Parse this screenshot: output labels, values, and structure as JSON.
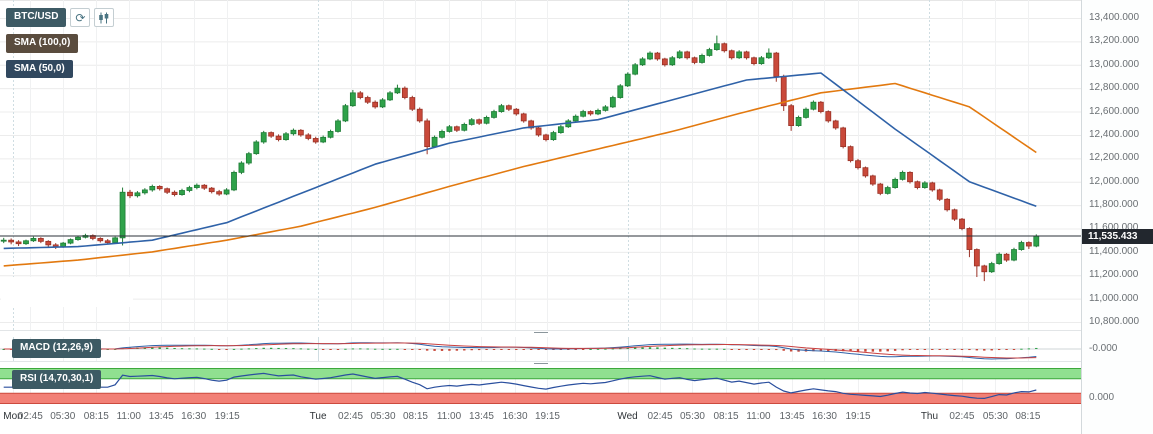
{
  "symbol": {
    "label": "BTC/USD"
  },
  "icons": {
    "refresh": "⟳",
    "chart_style": "candlestick"
  },
  "current_price": {
    "label": "11,535.433",
    "value": 11535.433
  },
  "indicators": {
    "sma100": {
      "label": "SMA (100,0)",
      "color": "#e2790f",
      "badge_bg": "#5a4c3e"
    },
    "sma50": {
      "label": "SMA (50,0)",
      "color": "#2f62a8",
      "badge_bg": "#31485f"
    },
    "macd": {
      "label": "MACD (12,26,9)",
      "params": [
        12,
        26,
        9
      ],
      "axis_label": "-0.000",
      "colors": {
        "hist_up": "#2fa24a",
        "hist_down": "#c9493a",
        "macd_line": "#2f62a8",
        "signal_line": "#c94040",
        "zero_line": "#cfd4d7"
      }
    },
    "rsi": {
      "label": "RSI (14,70,30,1)",
      "params": [
        14,
        70,
        30,
        1
      ],
      "axis_label": "0.000",
      "colors": {
        "line": "#2a4f9e",
        "band_high_fill": "#90e090",
        "band_high_edge": "#3ca83c",
        "band_low_fill": "#f28076",
        "band_low_edge": "#cc4a3e"
      }
    }
  },
  "chart_data": {
    "type": "candlestick",
    "title": "BTC/USD",
    "grid": true,
    "ylim": [
      10732,
      13554
    ],
    "price_axis": {
      "labels": [
        "13,400.000",
        "13,200.000",
        "13,000.000",
        "12,800.000",
        "12,600.000",
        "12,400.000",
        "12,200.000",
        "12,000.000",
        "11,800.000",
        "11,600.000",
        "11,400.000",
        "11,200.000",
        "11,000.000",
        "10,800.000"
      ],
      "values": [
        13400,
        13200,
        13000,
        12800,
        12600,
        12400,
        12200,
        12000,
        11800,
        11600,
        11400,
        11200,
        11000,
        10800
      ]
    },
    "timeframe_labels": [
      {
        "label": "Mon",
        "x": 0.012,
        "day": true
      },
      {
        "label": "02:45",
        "x": 0.028,
        "day": false
      },
      {
        "label": "05:30",
        "x": 0.058,
        "day": false
      },
      {
        "label": "08:15",
        "x": 0.089,
        "day": false
      },
      {
        "label": "11:00",
        "x": 0.119,
        "day": false
      },
      {
        "label": "13:45",
        "x": 0.149,
        "day": false
      },
      {
        "label": "16:30",
        "x": 0.179,
        "day": false
      },
      {
        "label": "19:15",
        "x": 0.21,
        "day": false
      },
      {
        "label": "Tue",
        "x": 0.294,
        "day": true
      },
      {
        "label": "02:45",
        "x": 0.324,
        "day": false
      },
      {
        "label": "05:30",
        "x": 0.354,
        "day": false
      },
      {
        "label": "08:15",
        "x": 0.384,
        "day": false
      },
      {
        "label": "11:00",
        "x": 0.415,
        "day": false
      },
      {
        "label": "13:45",
        "x": 0.445,
        "day": false
      },
      {
        "label": "16:30",
        "x": 0.476,
        "day": false
      },
      {
        "label": "19:15",
        "x": 0.506,
        "day": false
      },
      {
        "label": "Wed",
        "x": 0.58,
        "day": true
      },
      {
        "label": "02:45",
        "x": 0.61,
        "day": false
      },
      {
        "label": "05:30",
        "x": 0.64,
        "day": false
      },
      {
        "label": "08:15",
        "x": 0.671,
        "day": false
      },
      {
        "label": "11:00",
        "x": 0.701,
        "day": false
      },
      {
        "label": "13:45",
        "x": 0.732,
        "day": false
      },
      {
        "label": "16:30",
        "x": 0.762,
        "day": false
      },
      {
        "label": "19:15",
        "x": 0.793,
        "day": false
      },
      {
        "label": "Thu",
        "x": 0.859,
        "day": true
      },
      {
        "label": "02:45",
        "x": 0.889,
        "day": false
      },
      {
        "label": "05:30",
        "x": 0.92,
        "day": false
      },
      {
        "label": "08:15",
        "x": 0.95,
        "day": false
      }
    ],
    "candles": [
      [
        11495,
        11520,
        11475,
        11500
      ],
      [
        11500,
        11515,
        11465,
        11485
      ],
      [
        11485,
        11500,
        11450,
        11470
      ],
      [
        11470,
        11505,
        11460,
        11495
      ],
      [
        11495,
        11530,
        11485,
        11515
      ],
      [
        11515,
        11525,
        11475,
        11490
      ],
      [
        11490,
        11500,
        11445,
        11460
      ],
      [
        11460,
        11475,
        11425,
        11445
      ],
      [
        11445,
        11485,
        11435,
        11475
      ],
      [
        11475,
        11515,
        11465,
        11505
      ],
      [
        11505,
        11540,
        11495,
        11525
      ],
      [
        11525,
        11555,
        11515,
        11540
      ],
      [
        11540,
        11550,
        11500,
        11515
      ],
      [
        11515,
        11525,
        11480,
        11495
      ],
      [
        11495,
        11510,
        11465,
        11480
      ],
      [
        11480,
        11530,
        11470,
        11520
      ],
      [
        11520,
        11950,
        11455,
        11910
      ],
      [
        11910,
        11930,
        11860,
        11880
      ],
      [
        11880,
        11920,
        11865,
        11905
      ],
      [
        11905,
        11945,
        11890,
        11930
      ],
      [
        11930,
        11975,
        11915,
        11960
      ],
      [
        11960,
        11970,
        11925,
        11940
      ],
      [
        11940,
        11950,
        11895,
        11910
      ],
      [
        11910,
        11925,
        11875,
        11890
      ],
      [
        11890,
        11940,
        11880,
        11925
      ],
      [
        11925,
        11965,
        11910,
        11950
      ],
      [
        11950,
        11985,
        11935,
        11970
      ],
      [
        11970,
        11980,
        11930,
        11945
      ],
      [
        11945,
        11955,
        11900,
        11915
      ],
      [
        11915,
        11930,
        11880,
        11895
      ],
      [
        11895,
        11945,
        11885,
        11930
      ],
      [
        11930,
        12095,
        11920,
        12080
      ],
      [
        12080,
        12175,
        12065,
        12160
      ],
      [
        12160,
        12255,
        12145,
        12240
      ],
      [
        12240,
        12355,
        12230,
        12340
      ],
      [
        12340,
        12435,
        12325,
        12420
      ],
      [
        12420,
        12430,
        12375,
        12390
      ],
      [
        12390,
        12405,
        12345,
        12360
      ],
      [
        12360,
        12425,
        12350,
        12410
      ],
      [
        12410,
        12455,
        12395,
        12440
      ],
      [
        12440,
        12450,
        12385,
        12400
      ],
      [
        12400,
        12415,
        12355,
        12370
      ],
      [
        12370,
        12385,
        12325,
        12340
      ],
      [
        12340,
        12395,
        12330,
        12380
      ],
      [
        12380,
        12445,
        12370,
        12430
      ],
      [
        12430,
        12535,
        12420,
        12520
      ],
      [
        12520,
        12665,
        12510,
        12650
      ],
      [
        12650,
        12785,
        12640,
        12760
      ],
      [
        12760,
        12775,
        12705,
        12720
      ],
      [
        12720,
        12735,
        12665,
        12680
      ],
      [
        12680,
        12695,
        12625,
        12640
      ],
      [
        12640,
        12715,
        12630,
        12700
      ],
      [
        12700,
        12775,
        12690,
        12760
      ],
      [
        12760,
        12830,
        12750,
        12800
      ],
      [
        12800,
        12815,
        12705,
        12720
      ],
      [
        12720,
        12735,
        12605,
        12620
      ],
      [
        12620,
        12635,
        12505,
        12520
      ],
      [
        12520,
        12540,
        12235,
        12300
      ],
      [
        12300,
        12395,
        12290,
        12380
      ],
      [
        12380,
        12445,
        12370,
        12430
      ],
      [
        12430,
        12485,
        12420,
        12470
      ],
      [
        12470,
        12480,
        12425,
        12440
      ],
      [
        12440,
        12505,
        12430,
        12490
      ],
      [
        12490,
        12545,
        12480,
        12530
      ],
      [
        12530,
        12540,
        12485,
        12500
      ],
      [
        12500,
        12565,
        12490,
        12550
      ],
      [
        12550,
        12615,
        12540,
        12600
      ],
      [
        12600,
        12665,
        12590,
        12650
      ],
      [
        12650,
        12660,
        12605,
        12620
      ],
      [
        12620,
        12630,
        12565,
        12580
      ],
      [
        12580,
        12590,
        12505,
        12520
      ],
      [
        12520,
        12530,
        12445,
        12460
      ],
      [
        12460,
        12470,
        12385,
        12400
      ],
      [
        12400,
        12410,
        12345,
        12360
      ],
      [
        12360,
        12435,
        12350,
        12420
      ],
      [
        12420,
        12485,
        12410,
        12470
      ],
      [
        12470,
        12535,
        12460,
        12520
      ],
      [
        12520,
        12575,
        12510,
        12560
      ],
      [
        12560,
        12615,
        12550,
        12600
      ],
      [
        12600,
        12610,
        12565,
        12580
      ],
      [
        12580,
        12625,
        12570,
        12610
      ],
      [
        12610,
        12655,
        12600,
        12640
      ],
      [
        12640,
        12735,
        12630,
        12720
      ],
      [
        12720,
        12835,
        12710,
        12820
      ],
      [
        12820,
        12935,
        12810,
        12920
      ],
      [
        12920,
        13015,
        12910,
        13000
      ],
      [
        13000,
        13065,
        12990,
        13050
      ],
      [
        13050,
        13115,
        13040,
        13100
      ],
      [
        13100,
        13110,
        13035,
        13050
      ],
      [
        13050,
        13060,
        12985,
        13000
      ],
      [
        13000,
        13075,
        12990,
        13060
      ],
      [
        13060,
        13125,
        13050,
        13110
      ],
      [
        13110,
        13120,
        13045,
        13060
      ],
      [
        13060,
        13070,
        13005,
        13020
      ],
      [
        13020,
        13095,
        13010,
        13080
      ],
      [
        13080,
        13145,
        13070,
        13130
      ],
      [
        13130,
        13250,
        13120,
        13180
      ],
      [
        13180,
        13190,
        13105,
        13120
      ],
      [
        13120,
        13130,
        13045,
        13060
      ],
      [
        13060,
        13125,
        13050,
        13110
      ],
      [
        13110,
        13120,
        13045,
        13060
      ],
      [
        13060,
        13070,
        12995,
        13010
      ],
      [
        13010,
        13075,
        13000,
        13060
      ],
      [
        13060,
        13140,
        13050,
        13100
      ],
      [
        13100,
        13110,
        12855,
        12900
      ],
      [
        12900,
        12915,
        12605,
        12650
      ],
      [
        12650,
        12665,
        12435,
        12480
      ],
      [
        12480,
        12565,
        12470,
        12550
      ],
      [
        12550,
        12635,
        12540,
        12620
      ],
      [
        12620,
        12695,
        12610,
        12680
      ],
      [
        12680,
        12690,
        12585,
        12600
      ],
      [
        12600,
        12610,
        12505,
        12520
      ],
      [
        12520,
        12530,
        12445,
        12460
      ],
      [
        12460,
        12470,
        12285,
        12300
      ],
      [
        12300,
        12310,
        12165,
        12180
      ],
      [
        12180,
        12195,
        12105,
        12120
      ],
      [
        12120,
        12130,
        12035,
        12050
      ],
      [
        12050,
        12060,
        11965,
        11980
      ],
      [
        11980,
        11990,
        11885,
        11900
      ],
      [
        11900,
        11965,
        11890,
        11950
      ],
      [
        11950,
        12035,
        11940,
        12020
      ],
      [
        12020,
        12095,
        12010,
        12080
      ],
      [
        12080,
        12090,
        11985,
        12000
      ],
      [
        12000,
        12010,
        11935,
        11950
      ],
      [
        11950,
        12005,
        11940,
        11990
      ],
      [
        11990,
        12000,
        11915,
        11930
      ],
      [
        11930,
        11940,
        11835,
        11850
      ],
      [
        11850,
        11860,
        11745,
        11760
      ],
      [
        11760,
        11770,
        11665,
        11680
      ],
      [
        11680,
        11690,
        11585,
        11600
      ],
      [
        11600,
        11610,
        11355,
        11420
      ],
      [
        11420,
        11430,
        11185,
        11280
      ],
      [
        11280,
        11290,
        11150,
        11230
      ],
      [
        11230,
        11315,
        11220,
        11300
      ],
      [
        11300,
        11395,
        11290,
        11380
      ],
      [
        11380,
        11390,
        11315,
        11330
      ],
      [
        11330,
        11435,
        11320,
        11420
      ],
      [
        11420,
        11495,
        11410,
        11480
      ],
      [
        11480,
        11490,
        11425,
        11450
      ],
      [
        11450,
        11550,
        11440,
        11535
      ]
    ],
    "overlays": [
      {
        "name": "SMA (100,0)",
        "period": 100,
        "color": "#e2790f",
        "indices": [
          0,
          10,
          20,
          30,
          40,
          50,
          60,
          70,
          80,
          90,
          100,
          110,
          120,
          130,
          139
        ],
        "values": [
          11280,
          11330,
          11400,
          11500,
          11620,
          11780,
          11960,
          12130,
          12280,
          12430,
          12600,
          12760,
          12840,
          12640,
          12250
        ]
      },
      {
        "name": "SMA (50,0)",
        "period": 50,
        "color": "#2f62a8",
        "indices": [
          0,
          10,
          20,
          30,
          40,
          50,
          60,
          70,
          80,
          90,
          100,
          110,
          120,
          130,
          139
        ],
        "values": [
          11430,
          11445,
          11500,
          11650,
          11900,
          12150,
          12330,
          12460,
          12530,
          12700,
          12870,
          12930,
          12450,
          12000,
          11790
        ]
      }
    ],
    "colors": {
      "up_fill": "#2fa24a",
      "up_border": "#1e7c36",
      "down_fill": "#c9493a",
      "down_border": "#9a3226",
      "grid_h": "#ececec",
      "grid_v": "#f0f1f2",
      "grid_day": "#cfdde2",
      "price_line": "#2b3138"
    }
  }
}
